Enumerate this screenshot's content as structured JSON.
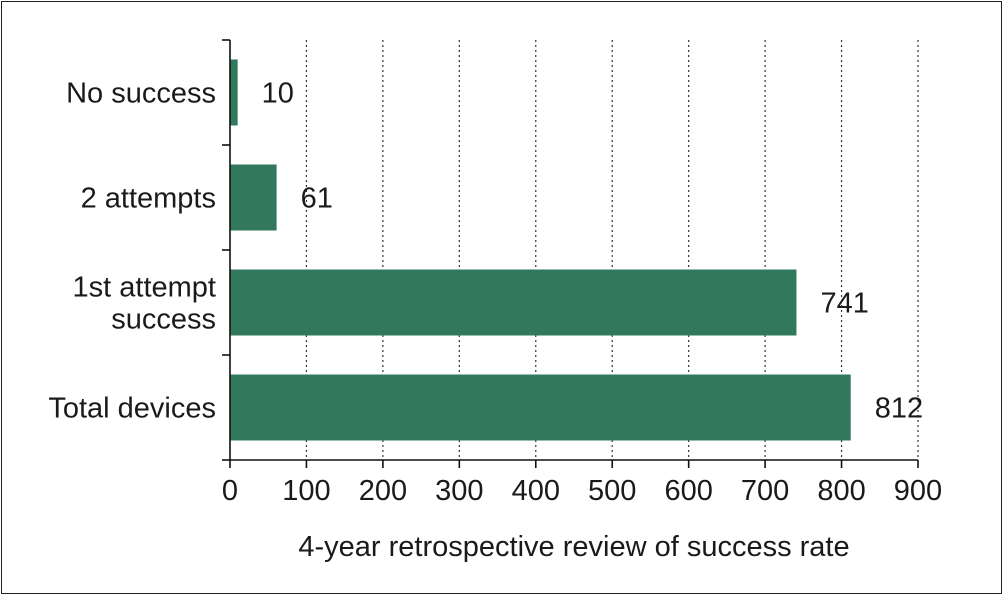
{
  "chart_data": {
    "type": "bar",
    "orientation": "horizontal",
    "categories": [
      "No success",
      "2 attempts",
      "1st attempt success",
      "Total devices"
    ],
    "category_lines": [
      [
        "No success"
      ],
      [
        "2 attempts"
      ],
      [
        "1st attempt",
        "success"
      ],
      [
        "Total devices"
      ]
    ],
    "values": [
      10,
      61,
      741,
      812
    ],
    "value_labels": [
      "10",
      "61",
      "741",
      "812"
    ],
    "xlabel": "4-year retrospective review of success rate",
    "ylabel": "",
    "title": "",
    "xlim": [
      0,
      900
    ],
    "xticks": [
      0,
      100,
      200,
      300,
      400,
      500,
      600,
      700,
      800,
      900
    ],
    "xtick_labels": [
      "0",
      "100",
      "200",
      "300",
      "400",
      "500",
      "600",
      "700",
      "800",
      "900"
    ],
    "grid": "vertical dotted",
    "legend": "none",
    "bar_color": "#32785C"
  }
}
